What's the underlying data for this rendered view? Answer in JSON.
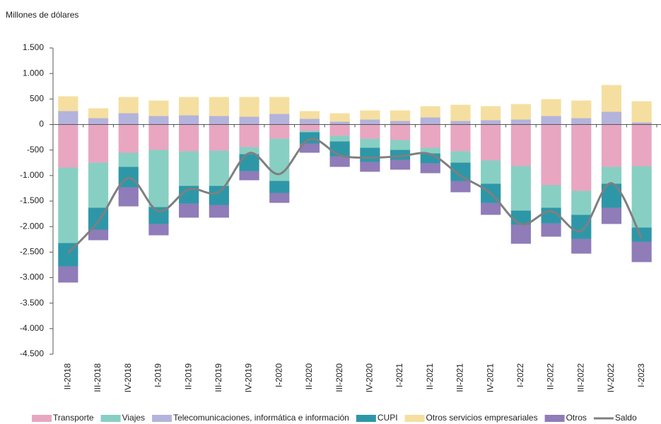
{
  "chart_data": {
    "type": "bar",
    "stacked": true,
    "y_label": "Millones de dólares",
    "categories": [
      "II-2018",
      "III-2018",
      "IV-2018",
      "I-2019",
      "II-2019",
      "III-2019",
      "IV-2019",
      "I-2020",
      "II-2020",
      "III-2020",
      "IV-2020",
      "I-2021",
      "II-2021",
      "III-2021",
      "IV-2021",
      "I-2022",
      "II-2022",
      "III-2022",
      "IV-2022",
      "I-2023"
    ],
    "series": [
      {
        "name": "Transporte",
        "color": "#e8a6c1",
        "values": [
          -843,
          -747,
          -553,
          -498,
          -525,
          -512,
          -442,
          -277,
          -124,
          -221,
          -277,
          -304,
          -456,
          -525,
          -705,
          -816,
          -1189,
          -1300,
          -830,
          -816
        ]
      },
      {
        "name": "Viajes",
        "color": "#88cfc3",
        "values": [
          -1480,
          -884,
          -277,
          -1120,
          -678,
          -691,
          -139,
          -829,
          -28,
          -111,
          -179,
          -194,
          -111,
          -222,
          -456,
          -871,
          -442,
          -470,
          -331,
          -1203
        ]
      },
      {
        "name": "Telecomunicaciones, informática e información",
        "color": "#b3b3dc",
        "values": [
          263,
          124,
          221,
          166,
          180,
          166,
          152,
          207,
          111,
          55,
          97,
          69,
          138,
          69,
          83,
          97,
          166,
          124,
          249,
          41
        ]
      },
      {
        "name": "CUPI",
        "color": "#2d97a8",
        "values": [
          -456,
          -429,
          -400,
          -332,
          -345,
          -373,
          -331,
          -235,
          -221,
          -290,
          -277,
          -193,
          -193,
          -359,
          -374,
          -276,
          -305,
          -470,
          -470,
          -276
        ]
      },
      {
        "name": "Otros servicios empresariales",
        "color": "#f5dfa0",
        "values": [
          290,
          194,
          318,
          304,
          359,
          373,
          387,
          332,
          152,
          166,
          180,
          208,
          221,
          318,
          276,
          304,
          332,
          346,
          525,
          415
        ]
      },
      {
        "name": "Otros",
        "color": "#8f7cb8",
        "values": [
          -318,
          -207,
          -374,
          -221,
          -277,
          -249,
          -180,
          -194,
          -180,
          -208,
          -193,
          -194,
          -194,
          -221,
          -235,
          -374,
          -262,
          -290,
          -318,
          -401
        ]
      },
      {
        "name": "Saldo",
        "type": "line",
        "color": "#7f7f7f",
        "values": [
          -2520,
          -1900,
          -1050,
          -1700,
          -1270,
          -1320,
          -560,
          -970,
          -290,
          -600,
          -650,
          -620,
          -580,
          -1000,
          -1350,
          -1950,
          -1700,
          -2080,
          -1150,
          -2230
        ]
      }
    ],
    "ylim": [
      -4500,
      1500
    ],
    "yticks": [
      {
        "value": 1500,
        "label": "1.500"
      },
      {
        "value": 1000,
        "label": "1.000"
      },
      500,
      0,
      -500,
      {
        "value": -1000,
        "label": "-1.000"
      },
      {
        "value": -1500,
        "label": "-1.500"
      },
      {
        "value": -2000,
        "label": "-2.000"
      },
      {
        "value": -2500,
        "label": "-2.500"
      },
      {
        "value": -3000,
        "label": "-3.000"
      },
      {
        "value": -3500,
        "label": "-3.500"
      },
      {
        "value": -4000,
        "label": "-4.000"
      },
      {
        "value": -4500,
        "label": "-4.500"
      }
    ],
    "legend": "bottom"
  }
}
